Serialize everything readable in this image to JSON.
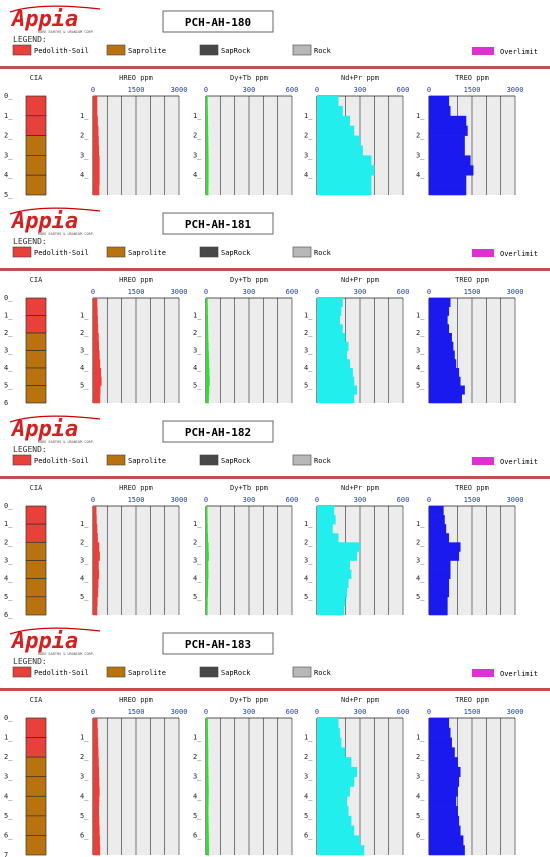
{
  "brand": {
    "logo_text": "Appia",
    "tagline": "RARE EARTHS & URANIUM CORP."
  },
  "legend": {
    "title": "LEGEND:",
    "items": [
      {
        "label": "Pedolith-Soil",
        "color": "#e8403a"
      },
      {
        "label": "Saprolite",
        "color": "#b8730e"
      },
      {
        "label": "SapRock",
        "color": "#484848"
      },
      {
        "label": "Rock",
        "color": "#b8b8b8"
      }
    ],
    "overlimit_label": "Overlimit",
    "overlimit_color": "#e030d0"
  },
  "colors": {
    "divider": "#c0504d",
    "hreo": "#e8403a",
    "dytb": "#33dd33",
    "ndpr": "#22eeee",
    "treo": "#1a1aee",
    "panel_bg": "#ececec",
    "tick_label": "#1f3fa0"
  },
  "chart_data": [
    {
      "type": "bar",
      "title": "PCH-AH-180",
      "depth_ticks": [
        "0_",
        "1_",
        "2_",
        "3_",
        "4_",
        "5_"
      ],
      "panel_depth_ticks": [
        "1_",
        "2_",
        "3_",
        "4_"
      ],
      "cia": {
        "label": "CIA",
        "layers": [
          "Pedolith-Soil",
          "Pedolith-Soil",
          "Saprolite",
          "Saprolite",
          "Saprolite"
        ]
      },
      "panels": [
        {
          "label": "HREO ppm",
          "ticks": [
            "0",
            "1500",
            "3000"
          ],
          "max": 3000,
          "values": [
            150,
            150,
            170,
            190,
            200,
            210,
            230,
            230,
            230,
            220
          ]
        },
        {
          "label": "Dy+Tb ppm",
          "ticks": [
            "0",
            "300",
            "600"
          ],
          "max": 600,
          "values": [
            12,
            13,
            14,
            15,
            16,
            17,
            18,
            18,
            18,
            17
          ]
        },
        {
          "label": "Nd+Pr ppm",
          "ticks": [
            "0",
            "300",
            "600"
          ],
          "max": 600,
          "values": [
            150,
            180,
            230,
            260,
            300,
            320,
            380,
            400,
            380,
            380
          ]
        },
        {
          "label": "TREO ppm",
          "ticks": [
            "0",
            "1500",
            "3000"
          ],
          "max": 3000,
          "values": [
            700,
            750,
            1300,
            1350,
            1250,
            1250,
            1450,
            1550,
            1300,
            1300
          ]
        }
      ]
    },
    {
      "type": "bar",
      "title": "PCH-AH-181",
      "depth_ticks": [
        "0_",
        "1_",
        "2_",
        "3_",
        "4_",
        "5_",
        "6"
      ],
      "panel_depth_ticks": [
        "1_",
        "2_",
        "3_",
        "4_",
        "5_"
      ],
      "cia": {
        "label": "CIA",
        "layers": [
          "Pedolith-Soil",
          "Pedolith-Soil",
          "Saprolite",
          "Saprolite",
          "Saprolite",
          "Saprolite"
        ]
      },
      "panels": [
        {
          "label": "HREO ppm",
          "ticks": [
            "0",
            "1500",
            "3000"
          ],
          "max": 3000,
          "values": [
            150,
            160,
            170,
            180,
            200,
            210,
            230,
            250,
            280,
            300,
            260,
            250
          ]
        },
        {
          "label": "Dy+Tb ppm",
          "ticks": [
            "0",
            "300",
            "600"
          ],
          "max": 600,
          "values": [
            12,
            13,
            14,
            15,
            16,
            18,
            20,
            22,
            24,
            26,
            22,
            20
          ]
        },
        {
          "label": "Nd+Pr ppm",
          "ticks": [
            "0",
            "300",
            "600"
          ],
          "max": 600,
          "values": [
            180,
            170,
            160,
            180,
            200,
            220,
            210,
            230,
            250,
            260,
            280,
            260
          ]
        },
        {
          "label": "TREO ppm",
          "ticks": [
            "0",
            "1500",
            "3000"
          ],
          "max": 3000,
          "values": [
            750,
            700,
            650,
            700,
            800,
            850,
            900,
            950,
            1050,
            1100,
            1250,
            1150
          ]
        }
      ]
    },
    {
      "type": "bar",
      "title": "PCH-AH-182",
      "depth_ticks": [
        "0_",
        "1_",
        "2_",
        "3_",
        "4_",
        "5_",
        "6_"
      ],
      "panel_depth_ticks": [
        "1_",
        "2_",
        "3_",
        "4_",
        "5_"
      ],
      "cia": {
        "label": "CIA",
        "layers": [
          "Pedolith-Soil",
          "Pedolith-Soil",
          "Saprolite",
          "Saprolite",
          "Saprolite",
          "Saprolite"
        ]
      },
      "panels": [
        {
          "label": "HREO ppm",
          "ticks": [
            "0",
            "1500",
            "3000"
          ],
          "max": 3000,
          "values": [
            120,
            130,
            150,
            170,
            220,
            240,
            200,
            210,
            190,
            180,
            160,
            150
          ]
        },
        {
          "label": "Dy+Tb ppm",
          "ticks": [
            "0",
            "300",
            "600"
          ],
          "max": 600,
          "values": [
            10,
            11,
            12,
            14,
            18,
            20,
            16,
            17,
            15,
            14,
            12,
            11
          ]
        },
        {
          "label": "Nd+Pr ppm",
          "ticks": [
            "0",
            "300",
            "600"
          ],
          "max": 600,
          "values": [
            120,
            130,
            110,
            150,
            300,
            280,
            230,
            240,
            220,
            210,
            200,
            190
          ]
        },
        {
          "label": "TREO ppm",
          "ticks": [
            "0",
            "1500",
            "3000"
          ],
          "max": 3000,
          "values": [
            500,
            550,
            600,
            700,
            1100,
            1050,
            750,
            750,
            700,
            700,
            650,
            650
          ]
        }
      ]
    },
    {
      "type": "bar",
      "title": "PCH-AH-183",
      "depth_ticks": [
        "0_",
        "1_",
        "2_",
        "3_",
        "4_",
        "5_",
        "6_",
        "7_"
      ],
      "panel_depth_ticks": [
        "1_",
        "2_",
        "3_",
        "4_",
        "5_",
        "6_"
      ],
      "cia": {
        "label": "CIA",
        "layers": [
          "Pedolith-Soil",
          "Pedolith-Soil",
          "Saprolite",
          "Saprolite",
          "Saprolite",
          "Saprolite",
          "Saprolite"
        ]
      },
      "panels": [
        {
          "label": "HREO ppm",
          "ticks": [
            "0",
            "1500",
            "3000"
          ],
          "max": 3000,
          "values": [
            160,
            170,
            180,
            190,
            200,
            210,
            220,
            230,
            220,
            210,
            220,
            230,
            240,
            250
          ]
        },
        {
          "label": "Dy+Tb ppm",
          "ticks": [
            "0",
            "300",
            "600"
          ],
          "max": 600,
          "values": [
            13,
            14,
            15,
            16,
            16,
            17,
            18,
            19,
            18,
            17,
            18,
            19,
            20,
            21
          ]
        },
        {
          "label": "Nd+Pr ppm",
          "ticks": [
            "0",
            "300",
            "600"
          ],
          "max": 600,
          "values": [
            150,
            160,
            170,
            200,
            240,
            280,
            260,
            230,
            210,
            220,
            240,
            260,
            300,
            330
          ]
        },
        {
          "label": "TREO ppm",
          "ticks": [
            "0",
            "1500",
            "3000"
          ],
          "max": 3000,
          "values": [
            700,
            750,
            800,
            900,
            1000,
            1100,
            1050,
            1000,
            950,
            1000,
            1050,
            1100,
            1200,
            1250
          ]
        }
      ]
    }
  ]
}
